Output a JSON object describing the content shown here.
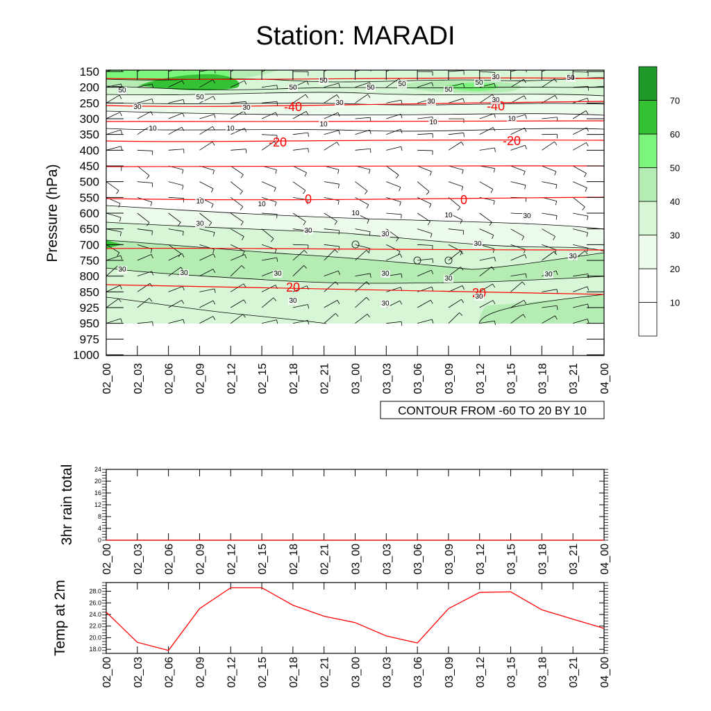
{
  "page_title": "Station: MARADI",
  "time_labels": [
    "02_00",
    "02_03",
    "02_06",
    "02_09",
    "02_12",
    "02_15",
    "02_18",
    "02_21",
    "03_00",
    "03_03",
    "03_06",
    "03_09",
    "03_12",
    "03_15",
    "03_18",
    "03_21",
    "04_00"
  ],
  "colors": {
    "accent_red": "#ff0000",
    "green_levels": [
      "#ffffff",
      "#ffffff",
      "#edfbed",
      "#d6f6d6",
      "#b4ecb4",
      "#7bf57b",
      "#34c234",
      "#1f9a2a"
    ]
  },
  "chart_data": [
    {
      "id": "cross-section",
      "type": "heatmap",
      "title": "Station: MARADI",
      "ylabel": "Pressure (hPa)",
      "xlabel": "",
      "y_ticks": [
        "150",
        "200",
        "250",
        "300",
        "350",
        "400",
        "450",
        "500",
        "550",
        "600",
        "650",
        "700",
        "750",
        "800",
        "850",
        "925",
        "950",
        "975",
        "1000"
      ],
      "x_ticks": [
        "02_00",
        "02_03",
        "02_06",
        "02_09",
        "02_12",
        "02_15",
        "02_18",
        "02_21",
        "03_00",
        "03_03",
        "03_06",
        "03_09",
        "03_12",
        "03_15",
        "03_18",
        "03_21",
        "04_00"
      ],
      "info_label": "CONTOUR FROM -60 TO 20 BY 10",
      "shading_variable": "wind speed (green fill)",
      "colorbar": {
        "levels": [
          10,
          20,
          30,
          40,
          50,
          60,
          70
        ],
        "labels": [
          "10",
          "20",
          "30",
          "40",
          "50",
          "60",
          "70"
        ]
      },
      "temperature_contours": [
        {
          "value": -40,
          "labels": [
            "-40",
            "-40"
          ]
        },
        {
          "value": -20,
          "labels": [
            "-20",
            "-20"
          ]
        },
        {
          "value": 0,
          "labels": [
            "0",
            "0"
          ]
        },
        {
          "value": 20,
          "labels": [
            "20",
            "20"
          ]
        }
      ],
      "speed_contour_labels": [
        "50",
        "50",
        "50",
        "50",
        "50",
        "50",
        "50",
        "50",
        "50",
        "30",
        "30",
        "30",
        "30",
        "30",
        "30",
        "10",
        "10",
        "10",
        "10",
        "10",
        "10",
        "10",
        "10",
        "10",
        "30",
        "30",
        "30",
        "30",
        "30",
        "30",
        "30",
        "30",
        "30",
        "30",
        "30",
        "30",
        "30",
        "30",
        "30"
      ]
    },
    {
      "id": "rain",
      "type": "line",
      "title": "",
      "ylabel": "3hr rain total",
      "xlabel": "",
      "ylim": [
        0,
        24
      ],
      "y_ticks": [
        "0",
        "4",
        "8",
        "12",
        "16",
        "20",
        "24"
      ],
      "x": [
        "02_00",
        "02_03",
        "02_06",
        "02_09",
        "02_12",
        "02_15",
        "02_18",
        "02_21",
        "03_00",
        "03_03",
        "03_06",
        "03_09",
        "03_12",
        "03_15",
        "03_18",
        "03_21",
        "04_00"
      ],
      "values": [
        0,
        0,
        0,
        0,
        0,
        0,
        0,
        0,
        0,
        0,
        0,
        0,
        0,
        0,
        0,
        0,
        0
      ]
    },
    {
      "id": "temp2m",
      "type": "line",
      "title": "",
      "ylabel": "Temp at 2m",
      "xlabel": "",
      "ylim": [
        17.3,
        29.5
      ],
      "y_ticks": [
        "18.0",
        "20.0",
        "22.0",
        "24.0",
        "26.0",
        "28.0"
      ],
      "x": [
        "02_00",
        "02_03",
        "02_06",
        "02_09",
        "02_12",
        "02_15",
        "02_18",
        "02_21",
        "03_00",
        "03_03",
        "03_06",
        "03_09",
        "03_12",
        "03_15",
        "03_18",
        "03_21",
        "04_00"
      ],
      "values": [
        24.4,
        19.2,
        17.8,
        25.0,
        28.6,
        28.6,
        25.6,
        23.7,
        22.6,
        20.3,
        19.1,
        25.0,
        27.8,
        27.9,
        24.8,
        23.2,
        21.6
      ],
      "color": "#ff0000"
    }
  ]
}
